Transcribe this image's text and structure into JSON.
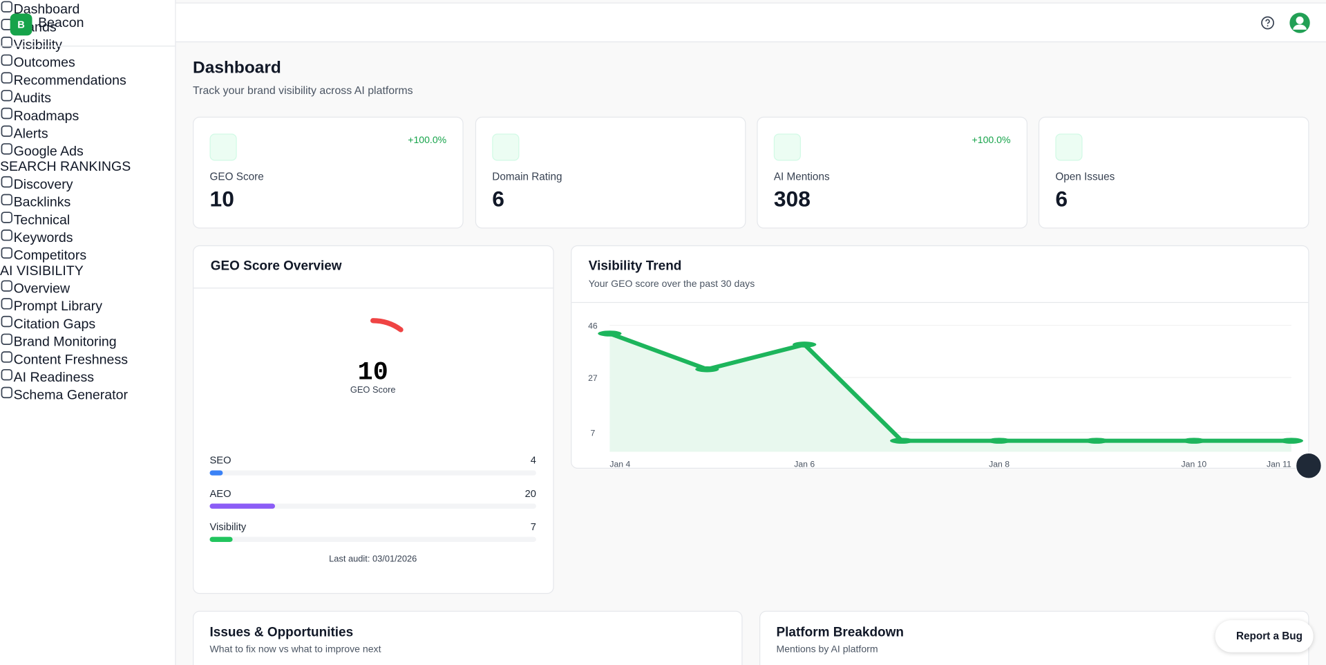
{
  "sidebar": {
    "logo_letter": "B",
    "brand": "Beacon",
    "nav": [
      "Dashboard",
      "Brands",
      "Visibility",
      "Outcomes",
      "Recommendations",
      "Audits",
      "Roadmaps",
      "Alerts",
      "Google Ads"
    ],
    "sections": [
      {
        "title": "SEARCH RANKINGS",
        "items": [
          "Discovery",
          "Backlinks",
          "Technical",
          "Keywords",
          "Competitors"
        ]
      },
      {
        "title": "AI VISIBILITY",
        "items": [
          "Overview",
          "Prompt Library",
          "Citation Gaps",
          "Brand Monitoring",
          "Content Freshness",
          "AI Readiness",
          "Schema Generator"
        ]
      }
    ]
  },
  "header": {
    "title": "Dashboard",
    "subtitle": "Track your brand visibility across AI platforms"
  },
  "stats": [
    {
      "label": "GEO Score",
      "value": 10,
      "change": "+100.0%"
    },
    {
      "label": "Domain Rating",
      "value": 6
    },
    {
      "label": "AI Mentions",
      "value": 308,
      "change": "+100.0%"
    },
    {
      "label": "Open Issues",
      "value": 6
    }
  ],
  "geo_overview": {
    "title": "GEO Score Overview",
    "score": 10,
    "score_label": "GEO Score",
    "color": "#ef4444",
    "xlim": [
      0,
      100
    ],
    "bars": [
      {
        "label": "SEO",
        "value": 4,
        "color": "#3b82f6"
      },
      {
        "label": "AEO",
        "value": 20,
        "color": "#8b5cf6"
      },
      {
        "label": "Visibility",
        "value": 7,
        "color": "#22c55e"
      }
    ],
    "footer": "Last audit: 03/01/2026"
  },
  "chart_data": {
    "type": "area",
    "title": "Visibility Trend",
    "subtitle": "Your GEO score over the past 30 days",
    "categories": [
      "Jan 4",
      null,
      "Jan 6",
      null,
      "Jan 8",
      null,
      "Jan 10",
      "Jan 11"
    ],
    "values": [
      43,
      30,
      39,
      4,
      4,
      4,
      4,
      4
    ],
    "color": "#1db55c",
    "ylim": [
      0,
      48
    ],
    "yticks": [
      7,
      27,
      46
    ],
    "grid": true
  },
  "bottom_cards": [
    {
      "title": "Issues & Opportunities",
      "subtitle": "What to fix now vs what to improve next"
    },
    {
      "title": "Platform Breakdown",
      "subtitle": "Mentions by AI platform"
    }
  ],
  "report_button": "Report a Bug"
}
